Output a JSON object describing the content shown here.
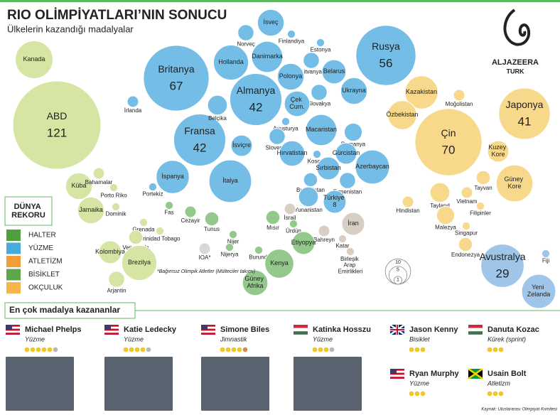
{
  "header": {
    "title": "RIO OLİMPİYATLARI’NIN SONUCU",
    "subtitle": "Ülkelerin kazandığı madalyalar"
  },
  "logo": {
    "name": "ALJAZEERA",
    "sub": "TURK"
  },
  "bubbles": [
    {
      "label": "Britanya",
      "value": 67,
      "color": "#74bde6"
    },
    {
      "label": "Almanya",
      "value": 42,
      "color": "#74bde6"
    },
    {
      "label": "Fransa",
      "value": 42,
      "color": "#74bde6"
    },
    {
      "label": "İtalya",
      "value": 28,
      "color": "#74bde6"
    },
    {
      "label": "Hollanda",
      "value": 19,
      "color": "#74bde6"
    },
    {
      "label": "Rusya",
      "value": 56,
      "color": "#74bde6"
    },
    {
      "label": "Danimarka",
      "value": 15,
      "color": "#74bde6"
    },
    {
      "label": "İsveç",
      "value": 11,
      "color": "#74bde6"
    },
    {
      "label": "Norveç",
      "value": 4,
      "color": "#74bde6"
    },
    {
      "label": "Finlandiya",
      "value": 1,
      "color": "#74bde6"
    },
    {
      "label": "Estonya",
      "value": 1,
      "color": "#74bde6"
    },
    {
      "label": "Litvanya",
      "value": 4,
      "color": "#74bde6"
    },
    {
      "label": "Belarus",
      "value": 9,
      "color": "#74bde6"
    },
    {
      "label": "Polonya",
      "value": 11,
      "color": "#74bde6"
    },
    {
      "label": "Ukrayna",
      "value": 11,
      "color": "#74bde6"
    },
    {
      "label": "Slovakya",
      "value": 4,
      "color": "#74bde6"
    },
    {
      "label": "Çek Cum.",
      "value": 10,
      "color": "#74bde6"
    },
    {
      "label": "Belçika",
      "value": 6,
      "color": "#74bde6"
    },
    {
      "label": "Avusturya",
      "value": 1,
      "color": "#74bde6"
    },
    {
      "label": "İsviçre",
      "value": 7,
      "color": "#74bde6"
    },
    {
      "label": "Slovenya",
      "value": 4,
      "color": "#74bde6"
    },
    {
      "label": "Macaristan",
      "value": 15,
      "color": "#74bde6"
    },
    {
      "label": "Romanya",
      "value": 5,
      "color": "#74bde6"
    },
    {
      "label": "Hırvatistan",
      "value": 10,
      "color": "#74bde6"
    },
    {
      "label": "Kosova",
      "value": 1,
      "color": "#74bde6"
    },
    {
      "label": "Gürcistan",
      "value": 7,
      "color": "#74bde6"
    },
    {
      "label": "Sırbistan",
      "value": 8,
      "color": "#74bde6"
    },
    {
      "label": "Azerbaycan",
      "value": 18,
      "color": "#74bde6"
    },
    {
      "label": "Bulgaristan",
      "value": 3,
      "color": "#74bde6"
    },
    {
      "label": "Ermenistan",
      "value": 4,
      "color": "#74bde6"
    },
    {
      "label": "İspanya",
      "value": 17,
      "color": "#74bde6"
    },
    {
      "label": "Portekiz",
      "value": 1,
      "color": "#74bde6"
    },
    {
      "label": "İrlanda",
      "value": 2,
      "color": "#74bde6"
    },
    {
      "label": "Yunanistan",
      "value": 6,
      "color": "#74bde6"
    },
    {
      "label": "Türkiye 8",
      "value": 8,
      "color": "#74bde6"
    },
    {
      "label": "ABD",
      "value": 121,
      "color": "#d6e5a3"
    },
    {
      "label": "Kanada",
      "value": 22,
      "color": "#d6e5a3"
    },
    {
      "label": "Küba",
      "value": 11,
      "color": "#d6e5a3"
    },
    {
      "label": "Bahamalar",
      "value": 2,
      "color": "#d6e5a3"
    },
    {
      "label": "Porto Riko",
      "value": 1,
      "color": "#d6e5a3"
    },
    {
      "label": "Jamaika",
      "value": 11,
      "color": "#d6e5a3"
    },
    {
      "label": "Dominik",
      "value": 1,
      "color": "#d6e5a3"
    },
    {
      "label": "Grenada",
      "value": 1,
      "color": "#d6e5a3"
    },
    {
      "label": "Trinidad Tobago",
      "value": 1,
      "color": "#d6e5a3"
    },
    {
      "label": "Venezuela",
      "value": 3,
      "color": "#d6e5a3"
    },
    {
      "label": "Kolombiya",
      "value": 8,
      "color": "#d6e5a3"
    },
    {
      "label": "Brezilya",
      "value": 19,
      "color": "#d6e5a3"
    },
    {
      "label": "Arjantin",
      "value": 4,
      "color": "#d6e5a3"
    },
    {
      "label": "Çin",
      "value": 70,
      "color": "#f8d88a"
    },
    {
      "label": "Japonya",
      "value": 41,
      "color": "#f8d88a"
    },
    {
      "label": "Kazakistan",
      "value": 17,
      "color": "#f8d88a"
    },
    {
      "label": "Özbekistan",
      "value": 13,
      "color": "#f8d88a"
    },
    {
      "label": "Moğolistan",
      "value": 2,
      "color": "#f8d88a"
    },
    {
      "label": "Kuzey Kore",
      "value": 7,
      "color": "#f8d88a"
    },
    {
      "label": "Güney Kore",
      "value": 21,
      "color": "#f8d88a"
    },
    {
      "label": "Tayvan",
      "value": 3,
      "color": "#f8d88a"
    },
    {
      "label": "Tayland",
      "value": 6,
      "color": "#f8d88a"
    },
    {
      "label": "Vietnam",
      "value": 2,
      "color": "#f8d88a"
    },
    {
      "label": "Filipinler",
      "value": 1,
      "color": "#f8d88a"
    },
    {
      "label": "Hindistan",
      "value": 2,
      "color": "#f8d88a"
    },
    {
      "label": "Malezya",
      "value": 5,
      "color": "#f8d88a"
    },
    {
      "label": "Singapur",
      "value": 1,
      "color": "#f8d88a"
    },
    {
      "label": "Endonezya",
      "value": 3,
      "color": "#f8d88a"
    },
    {
      "label": "İsrail",
      "value": 2,
      "color": "#d9cec3"
    },
    {
      "label": "İran",
      "value": 8,
      "color": "#d9cec3"
    },
    {
      "label": "Bahreyn",
      "value": 2,
      "color": "#d9cec3"
    },
    {
      "label": "Katar",
      "value": 1,
      "color": "#d9cec3"
    },
    {
      "label": "Birleşik Arap Emirlikleri",
      "value": 1,
      "color": "#d9cec3"
    },
    {
      "label": "Tunus",
      "value": 3,
      "color": "#93c98b"
    },
    {
      "label": "Mısır",
      "value": 3,
      "color": "#93c98b"
    },
    {
      "label": "Ürdün",
      "value": 1,
      "color": "#93c98b"
    },
    {
      "label": "Cezayir",
      "value": 2,
      "color": "#93c98b"
    },
    {
      "label": "Fas",
      "value": 1,
      "color": "#93c98b"
    },
    {
      "label": "Nijer",
      "value": 1,
      "color": "#93c98b"
    },
    {
      "label": "Nijerya",
      "value": 1,
      "color": "#93c98b"
    },
    {
      "label": "Burundi",
      "value": 1,
      "color": "#93c98b"
    },
    {
      "label": "Etiyopya",
      "value": 8,
      "color": "#93c98b"
    },
    {
      "label": "Kenya",
      "value": 13,
      "color": "#93c98b"
    },
    {
      "label": "Güney Afrika",
      "value": 10,
      "color": "#93c98b"
    },
    {
      "label": "Fiji",
      "value": 1,
      "color": "#9fc6e8"
    },
    {
      "label": "Avustralya",
      "value": 29,
      "color": "#9fc6e8"
    },
    {
      "label": "Yeni Zelanda",
      "value": 18,
      "color": "#9fc6e8"
    },
    {
      "label": "IOA*",
      "value": 2,
      "color": "#d8d8d8"
    }
  ],
  "ioa_note": "*Bağımsız Olimpik Atletler (Mülteciler takımı)",
  "size_legend": [
    10,
    5,
    1
  ],
  "records": {
    "title": "DÜNYA REKORU",
    "items": [
      {
        "label": "HALTER",
        "color": "#4e9f3d"
      },
      {
        "label": "YÜZME",
        "color": "#47abe0"
      },
      {
        "label": "ATLETİZM",
        "color": "#f29d38"
      },
      {
        "label": "BİSİKLET",
        "color": "#5fa64a"
      },
      {
        "label": "OKÇULUK",
        "color": "#f5b549"
      }
    ]
  },
  "athletes": {
    "title": "En çok madalya kazananlar",
    "list": [
      {
        "name": "Michael Phelps",
        "sport": "Yüzme",
        "gold": 5,
        "silver": 1,
        "bronze": 0
      },
      {
        "name": "Katie Ledecky",
        "sport": "Yüzme",
        "gold": 4,
        "silver": 1,
        "bronze": 0
      },
      {
        "name": "Simone Biles",
        "sport": "Jimnastik",
        "gold": 4,
        "silver": 0,
        "bronze": 1
      },
      {
        "name": "Katinka Hosszu",
        "sport": "Yüzme",
        "gold": 3,
        "silver": 1,
        "bronze": 0
      },
      {
        "name": "Jason Kenny",
        "sport": "Bisiklet",
        "gold": 3,
        "silver": 0,
        "bronze": 0
      },
      {
        "name": "Danuta Kozac",
        "sport": "Kürek (sprint)",
        "gold": 3,
        "silver": 0,
        "bronze": 0
      },
      {
        "name": "Ryan Murphy",
        "sport": "Yüzme",
        "gold": 3,
        "silver": 0,
        "bronze": 0
      },
      {
        "name": "Usain Bolt",
        "sport": "Atletizm",
        "gold": 3,
        "silver": 0,
        "bronze": 0
      }
    ]
  },
  "source": "Kaynak: Uluslararası Olimpiyat Komitesi"
}
